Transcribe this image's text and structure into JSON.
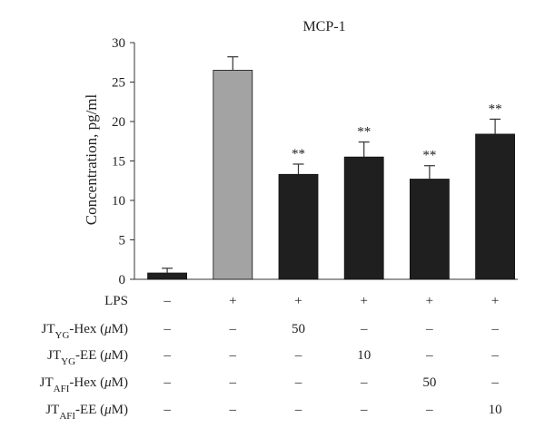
{
  "chart_data": {
    "type": "bar",
    "title": "MCP-1",
    "ylabel": "Concentration, pg/ml",
    "xlabel": "",
    "ylim": [
      0,
      30
    ],
    "yticks": [
      0,
      5,
      10,
      15,
      20,
      25,
      30
    ],
    "values": [
      0.8,
      26.5,
      13.3,
      15.5,
      12.7,
      18.4
    ],
    "errors": [
      0.6,
      1.7,
      1.3,
      1.9,
      1.7,
      1.9
    ],
    "colors": [
      "#1f1f1f",
      "#a3a3a3",
      "#1f1f1f",
      "#1f1f1f",
      "#1f1f1f",
      "#1f1f1f"
    ],
    "significance": [
      "",
      "",
      "**",
      "**",
      "**",
      "**"
    ],
    "grid": false,
    "legend": "none",
    "conditions": [
      {
        "base": "LPS",
        "sub": "",
        "suffix": "",
        "cells": [
          "–",
          "+",
          "+",
          "+",
          "+",
          "+"
        ]
      },
      {
        "base": "JT",
        "sub": "YG",
        "suffix": "-Hex (",
        "mu": "μ",
        "unit": "M)",
        "cells": [
          "–",
          "–",
          "50",
          "–",
          "–",
          "–"
        ]
      },
      {
        "base": "JT",
        "sub": "YG",
        "suffix": "-EE (",
        "mu": "μ",
        "unit": "M)",
        "cells": [
          "–",
          "–",
          "–",
          "10",
          "–",
          "–"
        ]
      },
      {
        "base": "JT",
        "sub": "AFI",
        "suffix": "-Hex (",
        "mu": "μ",
        "unit": "M)",
        "cells": [
          "–",
          "–",
          "–",
          "–",
          "50",
          "–"
        ]
      },
      {
        "base": "JT",
        "sub": "AFI",
        "suffix": "-EE (",
        "mu": "μ",
        "unit": "M)",
        "cells": [
          "–",
          "–",
          "–",
          "–",
          "–",
          "10"
        ]
      }
    ]
  }
}
